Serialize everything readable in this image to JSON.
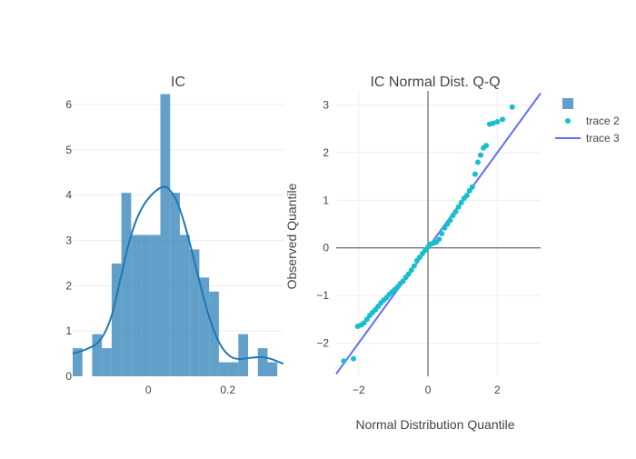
{
  "chart_data": [
    {
      "type": "bar",
      "title": "IC",
      "xlabel": "",
      "ylabel": "",
      "xlim": [
        -0.19,
        0.34
      ],
      "ylim": [
        0,
        6.3
      ],
      "bin_width": 0.0245,
      "bin_starts": [
        -0.19,
        -0.1655,
        -0.141,
        -0.1165,
        -0.092,
        -0.0675,
        -0.043,
        -0.0185,
        0.006,
        0.0305,
        0.055,
        0.0795,
        0.104,
        0.1285,
        0.153,
        0.1775,
        0.202,
        0.2265,
        0.251,
        0.2755,
        0.3,
        0.3245
      ],
      "values": [
        0.62,
        0,
        0.93,
        0.62,
        2.49,
        4.05,
        3.12,
        3.12,
        3.12,
        6.23,
        4.05,
        3.12,
        2.8,
        2.18,
        1.87,
        0.31,
        0.31,
        0.93,
        0,
        0.62,
        0.31,
        0
      ],
      "bar_color": "#1f77b4",
      "kde": {
        "x": [
          -0.19,
          -0.17,
          -0.15,
          -0.13,
          -0.11,
          -0.09,
          -0.07,
          -0.05,
          -0.03,
          -0.01,
          0.01,
          0.03,
          0.04,
          0.05,
          0.07,
          0.09,
          0.11,
          0.13,
          0.15,
          0.17,
          0.19,
          0.21,
          0.23,
          0.25,
          0.27,
          0.29,
          0.31,
          0.33,
          0.34
        ],
        "y": [
          0.5,
          0.55,
          0.62,
          0.72,
          0.95,
          1.4,
          2.15,
          2.9,
          3.45,
          3.8,
          4.02,
          4.16,
          4.18,
          4.15,
          3.9,
          3.4,
          2.75,
          2.05,
          1.4,
          0.9,
          0.58,
          0.42,
          0.38,
          0.4,
          0.42,
          0.42,
          0.38,
          0.31,
          0.28
        ],
        "color": "#1f77b4"
      },
      "x_ticks": [
        0,
        0.2
      ],
      "x_tick_labels": [
        "0",
        "0.2"
      ],
      "y_ticks": [
        0,
        1,
        2,
        3,
        4,
        5,
        6
      ],
      "y_tick_labels": [
        "0",
        "1",
        "2",
        "3",
        "4",
        "5",
        "6"
      ]
    },
    {
      "type": "scatter",
      "title": "IC Normal Dist. Q-Q",
      "xlabel": "Normal Distribution Quantile",
      "ylabel": "Observed Quantile",
      "xlim": [
        -2.65,
        3.25
      ],
      "ylim": [
        -2.7,
        3.3
      ],
      "x_ticks": [
        -2,
        0,
        2
      ],
      "x_tick_labels": [
        "−2",
        "0",
        "2"
      ],
      "y_ticks": [
        -2,
        -1,
        0,
        1,
        2,
        3
      ],
      "y_tick_labels": [
        "−2",
        "−1",
        "0",
        "1",
        "2",
        "3"
      ],
      "points": {
        "name": "trace 2",
        "color": "#17becf",
        "x": [
          -2.43,
          -2.15,
          -2.03,
          -1.93,
          -1.85,
          -1.76,
          -1.68,
          -1.6,
          -1.52,
          -1.44,
          -1.36,
          -1.28,
          -1.2,
          -1.12,
          -1.04,
          -0.96,
          -0.88,
          -0.8,
          -0.72,
          -0.64,
          -0.56,
          -0.48,
          -0.4,
          -0.32,
          -0.24,
          -0.16,
          -0.08,
          0.0,
          0.08,
          0.16,
          0.24,
          0.32,
          0.4,
          0.48,
          0.56,
          0.64,
          0.72,
          0.8,
          0.88,
          0.96,
          1.04,
          1.12,
          1.2,
          1.28,
          1.36,
          1.44,
          1.52,
          1.6,
          1.68,
          1.78,
          1.88,
          2.0,
          2.15,
          2.43
        ],
        "y": [
          -2.38,
          -2.33,
          -1.65,
          -1.62,
          -1.58,
          -1.5,
          -1.42,
          -1.36,
          -1.3,
          -1.23,
          -1.16,
          -1.1,
          -1.05,
          -0.98,
          -0.93,
          -0.88,
          -0.82,
          -0.75,
          -0.7,
          -0.62,
          -0.55,
          -0.47,
          -0.38,
          -0.27,
          -0.2,
          -0.12,
          -0.05,
          0.02,
          0.08,
          0.1,
          0.12,
          0.18,
          0.3,
          0.42,
          0.5,
          0.58,
          0.68,
          0.76,
          0.86,
          0.95,
          1.04,
          1.1,
          1.2,
          1.28,
          1.55,
          1.8,
          1.95,
          2.1,
          2.15,
          2.6,
          2.62,
          2.65,
          2.7,
          2.96
        ]
      },
      "line": {
        "name": "trace 3",
        "color": "#636efa",
        "x": [
          -2.65,
          3.25
        ],
        "y": [
          -2.65,
          3.25
        ]
      },
      "legend": {
        "position": "top-right",
        "entries": [
          {
            "name": "",
            "kind": "bar",
            "color": "#1f77b4"
          },
          {
            "name": "trace 2",
            "kind": "marker",
            "color": "#17becf"
          },
          {
            "name": "trace 3",
            "kind": "line",
            "color": "#636efa"
          }
        ]
      }
    }
  ]
}
